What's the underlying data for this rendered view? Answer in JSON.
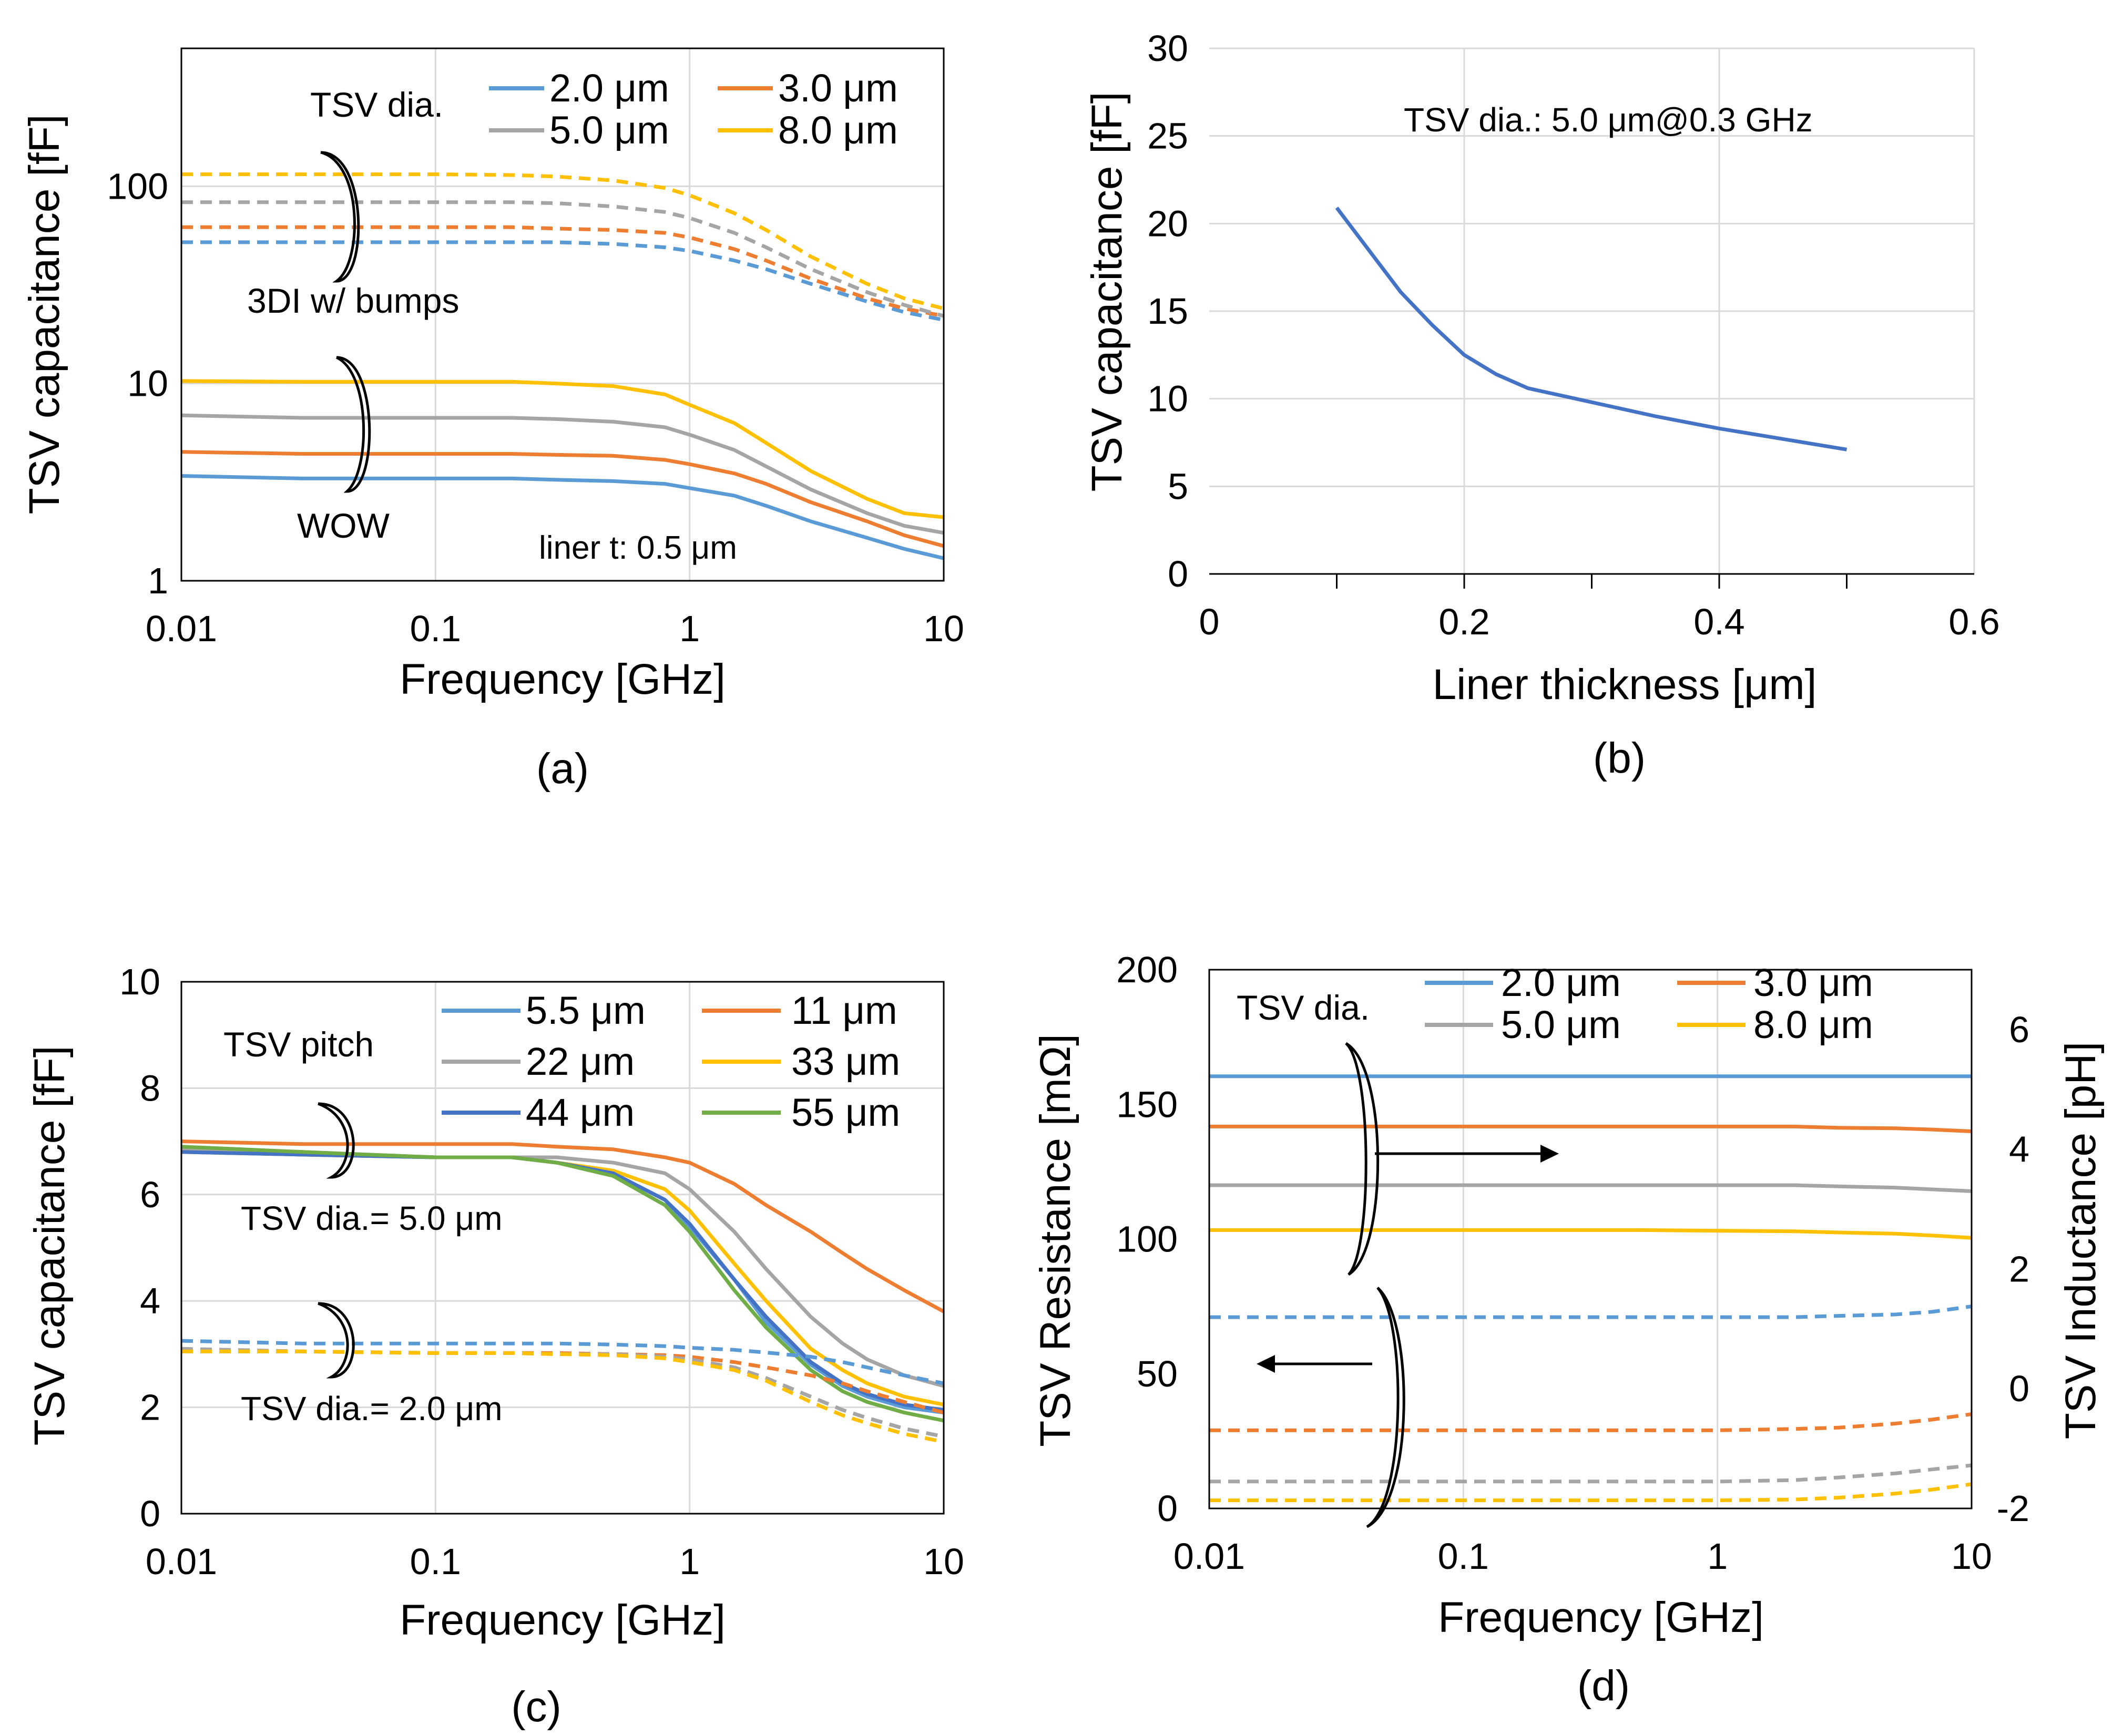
{
  "chart_data": [
    {
      "panel": "a",
      "caption": "(a)",
      "type": "line",
      "xscale": "log",
      "yscale": "log",
      "xlabel": "Frequency  [GHz]",
      "ylabel": "TSV capacitance [fF]",
      "xlim": [
        0.01,
        10
      ],
      "ylim": [
        1,
        500
      ],
      "xticks": [
        "0.01",
        "0.1",
        "1",
        "10"
      ],
      "yticks": [
        "1",
        "10",
        "100"
      ],
      "legend_title": "TSV dia.",
      "annotations": [
        "3DI w/ bumps",
        "WOW",
        "liner t: 0.5 μm"
      ],
      "x": [
        0.01,
        0.03,
        0.1,
        0.2,
        0.3,
        0.5,
        0.8,
        1,
        1.5,
        2,
        3,
        5,
        7,
        10
      ],
      "series": [
        {
          "name": "2.0 μm",
          "style": "solid",
          "color": "#5b9bd5",
          "values": [
            3.4,
            3.3,
            3.3,
            3.3,
            3.25,
            3.2,
            3.1,
            2.95,
            2.7,
            2.4,
            2.0,
            1.65,
            1.45,
            1.3
          ]
        },
        {
          "name": "3.0 μm",
          "style": "solid",
          "color": "#ed7d31",
          "values": [
            4.5,
            4.4,
            4.4,
            4.4,
            4.35,
            4.3,
            4.1,
            3.9,
            3.5,
            3.1,
            2.5,
            2.0,
            1.7,
            1.5
          ]
        },
        {
          "name": "5.0 μm",
          "style": "solid",
          "color": "#a5a5a5",
          "values": [
            6.9,
            6.7,
            6.7,
            6.7,
            6.6,
            6.4,
            6.0,
            5.5,
            4.6,
            3.8,
            2.9,
            2.2,
            1.9,
            1.75
          ]
        },
        {
          "name": "8.0 μm",
          "style": "solid",
          "color": "#ffc000",
          "values": [
            10.3,
            10.2,
            10.2,
            10.2,
            10.0,
            9.7,
            8.8,
            7.8,
            6.3,
            5.0,
            3.6,
            2.6,
            2.2,
            2.1
          ]
        },
        {
          "name": "2.0 μm (3DI w/ bumps)",
          "style": "dashed",
          "color": "#5b9bd5",
          "values": [
            52,
            52,
            52,
            52,
            52,
            51,
            49,
            47,
            42,
            38,
            32,
            26,
            23,
            21
          ]
        },
        {
          "name": "3.0 μm (3DI w/ bumps)",
          "style": "dashed",
          "color": "#ed7d31",
          "values": [
            62,
            62,
            62,
            62,
            61,
            60,
            58,
            55,
            48,
            42,
            34,
            27,
            24,
            22
          ]
        },
        {
          "name": "5.0 μm (3DI w/ bumps)",
          "style": "dashed",
          "color": "#a5a5a5",
          "values": [
            83,
            83,
            83,
            83,
            82,
            79,
            74,
            69,
            58,
            49,
            38,
            29,
            25,
            22
          ]
        },
        {
          "name": "8.0 μm (3DI w/ bumps)",
          "style": "dashed",
          "color": "#ffc000",
          "values": [
            115,
            115,
            115,
            114,
            112,
            107,
            98,
            90,
            73,
            60,
            44,
            32,
            27,
            24
          ]
        }
      ]
    },
    {
      "panel": "b",
      "caption": "(b)",
      "type": "line",
      "xscale": "linear",
      "yscale": "linear",
      "xlabel": "Liner thickness [μm]",
      "ylabel": "TSV capacitance [fF]",
      "xlim": [
        0,
        0.6
      ],
      "ylim": [
        0,
        30
      ],
      "xticks": [
        "0",
        "0.2",
        "0.4",
        "0.6"
      ],
      "yticks": [
        "0",
        "5",
        "10",
        "15",
        "20",
        "25",
        "30"
      ],
      "annotations": [
        "TSV dia.: 5.0 μm@0.3 GHz"
      ],
      "x": [
        0.1,
        0.125,
        0.15,
        0.175,
        0.2,
        0.225,
        0.25,
        0.3,
        0.35,
        0.4,
        0.45,
        0.5
      ],
      "series": [
        {
          "name": "TSV dia. 5.0 μm",
          "style": "solid",
          "color": "#4472c4",
          "values": [
            20.9,
            18.5,
            16.1,
            14.2,
            12.5,
            11.4,
            10.6,
            9.8,
            9.0,
            8.3,
            7.7,
            7.1
          ]
        }
      ]
    },
    {
      "panel": "c",
      "caption": "(c)",
      "type": "line",
      "xscale": "log",
      "yscale": "linear",
      "xlabel": "Frequency  [GHz]",
      "ylabel": "TSV capacitance [fF]",
      "xlim": [
        0.01,
        10
      ],
      "ylim": [
        0,
        10
      ],
      "xticks": [
        "0.01",
        "0.1",
        "1",
        "10"
      ],
      "yticks": [
        "0",
        "2",
        "4",
        "6",
        "8",
        "10"
      ],
      "legend_title": "TSV pitch",
      "annotations": [
        "TSV dia.= 5.0 μm",
        "TSV dia.= 2.0 μm"
      ],
      "x": [
        0.01,
        0.03,
        0.1,
        0.2,
        0.3,
        0.5,
        0.8,
        1,
        1.5,
        2,
        3,
        4,
        5,
        7,
        10
      ],
      "series": [
        {
          "name": "5.5 μm",
          "style": "solid",
          "color": "#5b9bd5",
          "values": [
            6.8,
            6.75,
            6.7,
            6.7,
            6.6,
            6.4,
            5.9,
            5.4,
            4.4,
            3.6,
            2.8,
            2.4,
            2.2,
            2.0,
            1.9
          ]
        },
        {
          "name": "11 μm",
          "style": "solid",
          "color": "#ed7d31",
          "values": [
            7.0,
            6.95,
            6.95,
            6.95,
            6.9,
            6.85,
            6.7,
            6.6,
            6.2,
            5.8,
            5.3,
            4.9,
            4.6,
            4.2,
            3.8
          ]
        },
        {
          "name": "22 μm",
          "style": "solid",
          "color": "#a5a5a5",
          "values": [
            6.85,
            6.8,
            6.7,
            6.7,
            6.7,
            6.6,
            6.4,
            6.1,
            5.3,
            4.6,
            3.7,
            3.2,
            2.9,
            2.6,
            2.4
          ]
        },
        {
          "name": "33 μm",
          "style": "solid",
          "color": "#ffc000",
          "values": [
            6.8,
            6.75,
            6.7,
            6.7,
            6.6,
            6.45,
            6.1,
            5.7,
            4.7,
            4.0,
            3.1,
            2.7,
            2.45,
            2.2,
            2.05
          ]
        },
        {
          "name": "44 μm",
          "style": "solid",
          "color": "#4472c4",
          "values": [
            6.8,
            6.75,
            6.7,
            6.7,
            6.6,
            6.4,
            5.9,
            5.45,
            4.4,
            3.7,
            2.85,
            2.45,
            2.25,
            2.05,
            1.95
          ]
        },
        {
          "name": "55 μm",
          "style": "solid",
          "color": "#70ad47",
          "values": [
            6.9,
            6.8,
            6.7,
            6.7,
            6.6,
            6.35,
            5.8,
            5.3,
            4.2,
            3.5,
            2.7,
            2.3,
            2.1,
            1.9,
            1.75
          ]
        },
        {
          "name": "5.5 μm (dia. 2.0 μm)",
          "style": "dashed",
          "color": "#5b9bd5",
          "values": [
            3.25,
            3.2,
            3.2,
            3.2,
            3.2,
            3.18,
            3.15,
            3.12,
            3.08,
            3.03,
            2.95,
            2.85,
            2.75,
            2.6,
            2.45
          ]
        },
        {
          "name": "11 μm (dia. 2.0 μm)",
          "style": "dashed",
          "color": "#ed7d31",
          "values": [
            3.05,
            3.05,
            3.02,
            3.02,
            3.02,
            3.0,
            2.98,
            2.95,
            2.85,
            2.75,
            2.6,
            2.45,
            2.3,
            2.1,
            1.9
          ]
        },
        {
          "name": "22 μm (dia. 2.0 μm)",
          "style": "dashed",
          "color": "#a5a5a5",
          "values": [
            3.1,
            3.05,
            3.02,
            3.02,
            3.0,
            3.0,
            2.95,
            2.9,
            2.75,
            2.55,
            2.2,
            1.95,
            1.8,
            1.6,
            1.45
          ]
        },
        {
          "name": "33 μm (dia. 2.0 μm)",
          "style": "dashed",
          "color": "#ffc000",
          "values": [
            3.05,
            3.05,
            3.02,
            3.02,
            3.0,
            2.98,
            2.92,
            2.85,
            2.7,
            2.5,
            2.1,
            1.85,
            1.7,
            1.5,
            1.35
          ]
        }
      ]
    },
    {
      "panel": "d",
      "caption": "(d)",
      "type": "line",
      "xscale": "log",
      "yscale": "linear",
      "xlabel": "Frequency  [GHz]",
      "ylabel": "TSV Resistance [mΩ]",
      "y2label": "TSV Inductance [pH]",
      "xlim": [
        0.01,
        10
      ],
      "ylim": [
        0,
        200
      ],
      "y2lim": [
        -2,
        7
      ],
      "xticks": [
        "0.01",
        "0.1",
        "1",
        "10"
      ],
      "yticks": [
        "0",
        "50",
        "100",
        "150",
        "200"
      ],
      "y2ticks": [
        "-2",
        "0",
        "2",
        "4",
        "6"
      ],
      "legend_title": "TSV dia.",
      "x": [
        0.01,
        0.1,
        0.5,
        1,
        2,
        3,
        5,
        7,
        10
      ],
      "series": [
        {
          "name": "2.0 μm",
          "axis": "y2",
          "style": "solid",
          "color": "#5b9bd5",
          "values": [
            5.22,
            5.22,
            5.22,
            5.22,
            5.22,
            5.22,
            5.22,
            5.22,
            5.22
          ]
        },
        {
          "name": "3.0 μm",
          "axis": "y2",
          "style": "solid",
          "color": "#ed7d31",
          "values": [
            4.38,
            4.38,
            4.38,
            4.38,
            4.38,
            4.36,
            4.35,
            4.33,
            4.3
          ]
        },
        {
          "name": "5.0 μm",
          "axis": "y2",
          "style": "solid",
          "color": "#a5a5a5",
          "values": [
            3.4,
            3.4,
            3.4,
            3.4,
            3.4,
            3.38,
            3.36,
            3.33,
            3.3
          ]
        },
        {
          "name": "8.0 μm",
          "axis": "y2",
          "style": "solid",
          "color": "#ffc000",
          "values": [
            2.65,
            2.65,
            2.65,
            2.64,
            2.63,
            2.61,
            2.59,
            2.56,
            2.52
          ]
        },
        {
          "name": "2.0 μm (resistance)",
          "axis": "y",
          "style": "dashed",
          "color": "#5b9bd5",
          "values": [
            71,
            71,
            71,
            71,
            71,
            71.5,
            72,
            73,
            75
          ]
        },
        {
          "name": "3.0 μm (resistance)",
          "axis": "y",
          "style": "dashed",
          "color": "#ed7d31",
          "values": [
            29,
            29,
            29,
            29,
            29.5,
            30,
            31.5,
            33,
            35
          ]
        },
        {
          "name": "5.0 μm (resistance)",
          "axis": "y",
          "style": "dashed",
          "color": "#a5a5a5",
          "values": [
            10,
            10,
            10,
            10,
            10.5,
            11.5,
            13,
            14.5,
            16
          ]
        },
        {
          "name": "8.0 μm (resistance)",
          "axis": "y",
          "style": "dashed",
          "color": "#ffc000",
          "values": [
            3,
            3,
            3,
            3,
            3.3,
            4,
            5.5,
            7,
            9
          ]
        }
      ]
    }
  ]
}
